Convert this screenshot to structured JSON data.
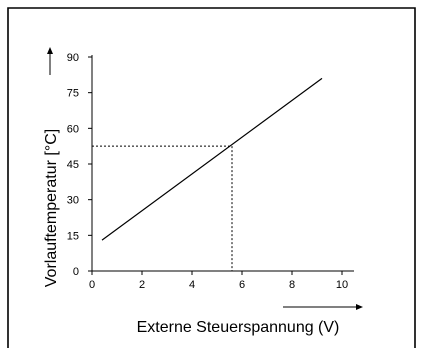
{
  "chart_data": {
    "type": "line",
    "xlabel": "Externe Steuerspannung  (V)",
    "ylabel": "Vorlauftemperatur [°C]",
    "xlim": [
      0,
      10
    ],
    "ylim": [
      0,
      90
    ],
    "x_ticks": [
      "0",
      "2",
      "4",
      "6",
      "8",
      "10"
    ],
    "y_ticks": [
      "0",
      "15",
      "30",
      "45",
      "60",
      "75",
      "90"
    ],
    "grid": false,
    "series": [
      {
        "x": [
          0.4,
          9.2
        ],
        "y": [
          13,
          81
        ]
      }
    ],
    "reference_point": {
      "x": 5.6,
      "y": 52.5
    },
    "colors": {
      "line": "#000000",
      "frame": "#000000"
    }
  }
}
